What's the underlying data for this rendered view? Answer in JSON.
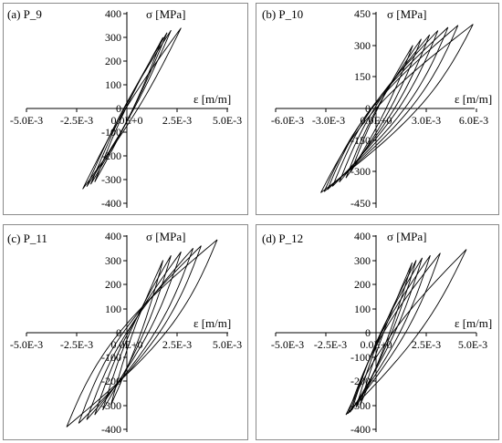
{
  "chart_data": [
    {
      "type": "line",
      "title": "(a) P_9",
      "xlabel": "ε [m/m]",
      "ylabel": "σ [MPa]",
      "xlim": [
        -0.005,
        0.005
      ],
      "ylim": [
        -400,
        400
      ],
      "xticks": [
        -0.005,
        -0.0025,
        0,
        0.0025,
        0.005
      ],
      "xtick_labels": [
        "-5.0E-3",
        "-2.5E-3",
        "0.0E+0",
        "2.5E-3",
        "5.0E-3"
      ],
      "yticks": [
        -400,
        -300,
        -200,
        -100,
        0,
        100,
        200,
        300,
        400
      ],
      "ytick_labels": [
        "-400",
        "-300",
        "-200",
        "-100",
        "0",
        "100",
        "200",
        "300",
        "400"
      ],
      "grid": false,
      "loops": [
        {
          "emax": 0.0018,
          "smax": 300,
          "emin": -0.0016,
          "smin": -310,
          "w": 18
        },
        {
          "emax": 0.002,
          "smax": 320,
          "emin": -0.0018,
          "smin": -320,
          "w": 22
        },
        {
          "emax": 0.0022,
          "smax": 330,
          "emin": -0.002,
          "smin": -330,
          "w": 26
        },
        {
          "emax": 0.0027,
          "smax": 340,
          "emin": -0.0022,
          "smin": -340,
          "w": 30
        }
      ]
    },
    {
      "type": "line",
      "title": "(b) P_10",
      "xlabel": "ε [m/m]",
      "ylabel": "σ [MPa]",
      "xlim": [
        -0.006,
        0.006
      ],
      "ylim": [
        -450,
        450
      ],
      "xticks": [
        -0.006,
        -0.003,
        0,
        0.003,
        0.006
      ],
      "xtick_labels": [
        "-6.0E-3",
        "-3.0E-3",
        "0.0E+0",
        "3.0E-3",
        "6.0E-3"
      ],
      "yticks": [
        -450,
        -300,
        -150,
        0,
        150,
        300,
        450
      ],
      "ytick_labels": [
        "-450",
        "-300",
        "-150",
        "0",
        "150",
        "300",
        "450"
      ],
      "grid": false,
      "loops": [
        {
          "emax": 0.0022,
          "smax": 300,
          "emin": -0.0015,
          "smin": -300,
          "w": 25
        },
        {
          "emax": 0.0027,
          "smax": 330,
          "emin": -0.0018,
          "smin": -330,
          "w": 40
        },
        {
          "emax": 0.0032,
          "smax": 350,
          "emin": -0.0022,
          "smin": -350,
          "w": 60
        },
        {
          "emax": 0.0037,
          "smax": 370,
          "emin": -0.0026,
          "smin": -370,
          "w": 80
        },
        {
          "emax": 0.0043,
          "smax": 385,
          "emin": -0.0029,
          "smin": -385,
          "w": 100
        },
        {
          "emax": 0.0049,
          "smax": 395,
          "emin": -0.0031,
          "smin": -395,
          "w": 115
        },
        {
          "emax": 0.0058,
          "smax": 400,
          "emin": -0.0033,
          "smin": -400,
          "w": 125
        }
      ]
    },
    {
      "type": "line",
      "title": "(c) P_11",
      "xlabel": "ε [m/m]",
      "ylabel": "σ [MPa]",
      "xlim": [
        -0.005,
        0.005
      ],
      "ylim": [
        -400,
        400
      ],
      "xticks": [
        -0.005,
        -0.0025,
        0,
        0.0025,
        0.005
      ],
      "xtick_labels": [
        "-5.0E-3",
        "-2.5E-3",
        "0.0E+0",
        "2.5E-3",
        "5.0E-3"
      ],
      "yticks": [
        -400,
        -300,
        -200,
        -100,
        0,
        100,
        200,
        300,
        400
      ],
      "ytick_labels": [
        "-400",
        "-300",
        "-200",
        "-100",
        "0",
        "100",
        "200",
        "300",
        "400"
      ],
      "grid": false,
      "loops": [
        {
          "emax": 0.0018,
          "smax": 300,
          "emin": -0.0008,
          "smin": -300,
          "w": 20
        },
        {
          "emax": 0.0022,
          "smax": 320,
          "emin": -0.0012,
          "smin": -320,
          "w": 35
        },
        {
          "emax": 0.0027,
          "smax": 335,
          "emin": -0.0016,
          "smin": -340,
          "w": 50
        },
        {
          "emax": 0.0033,
          "smax": 350,
          "emin": -0.002,
          "smin": -360,
          "w": 70
        },
        {
          "emax": 0.0037,
          "smax": 360,
          "emin": -0.0024,
          "smin": -375,
          "w": 90
        },
        {
          "emax": 0.0045,
          "smax": 385,
          "emin": -0.003,
          "smin": -390,
          "w": 115
        }
      ]
    },
    {
      "type": "line",
      "title": "(d) P_12",
      "xlabel": "ε [m/m]",
      "ylabel": "σ [MPa]",
      "xlim": [
        -0.005,
        0.005
      ],
      "ylim": [
        -400,
        400
      ],
      "xticks": [
        -0.005,
        -0.0025,
        0,
        0.0025,
        0.005
      ],
      "xtick_labels": [
        "-5.0E-3",
        "-2.5E-3",
        "0.0E+0",
        "2.5E-3",
        "5.0E-3"
      ],
      "yticks": [
        -400,
        -300,
        -200,
        -100,
        0,
        100,
        200,
        300,
        400
      ],
      "ytick_labels": [
        "-400",
        "-300",
        "-200",
        "-100",
        "0",
        "100",
        "200",
        "300",
        "400"
      ],
      "grid": false,
      "loops": [
        {
          "emax": 0.0018,
          "smax": 290,
          "emin": -0.0008,
          "smin": -300,
          "w": 15
        },
        {
          "emax": 0.002,
          "smax": 300,
          "emin": -0.001,
          "smin": -310,
          "w": 25
        },
        {
          "emax": 0.0023,
          "smax": 310,
          "emin": -0.0012,
          "smin": -320,
          "w": 35
        },
        {
          "emax": 0.0027,
          "smax": 320,
          "emin": -0.0013,
          "smin": -330,
          "w": 45
        },
        {
          "emax": 0.0032,
          "smax": 330,
          "emin": -0.0014,
          "smin": -335,
          "w": 55
        },
        {
          "emax": 0.0045,
          "smax": 345,
          "emin": -0.0015,
          "smin": -340,
          "w": 65
        }
      ]
    }
  ]
}
